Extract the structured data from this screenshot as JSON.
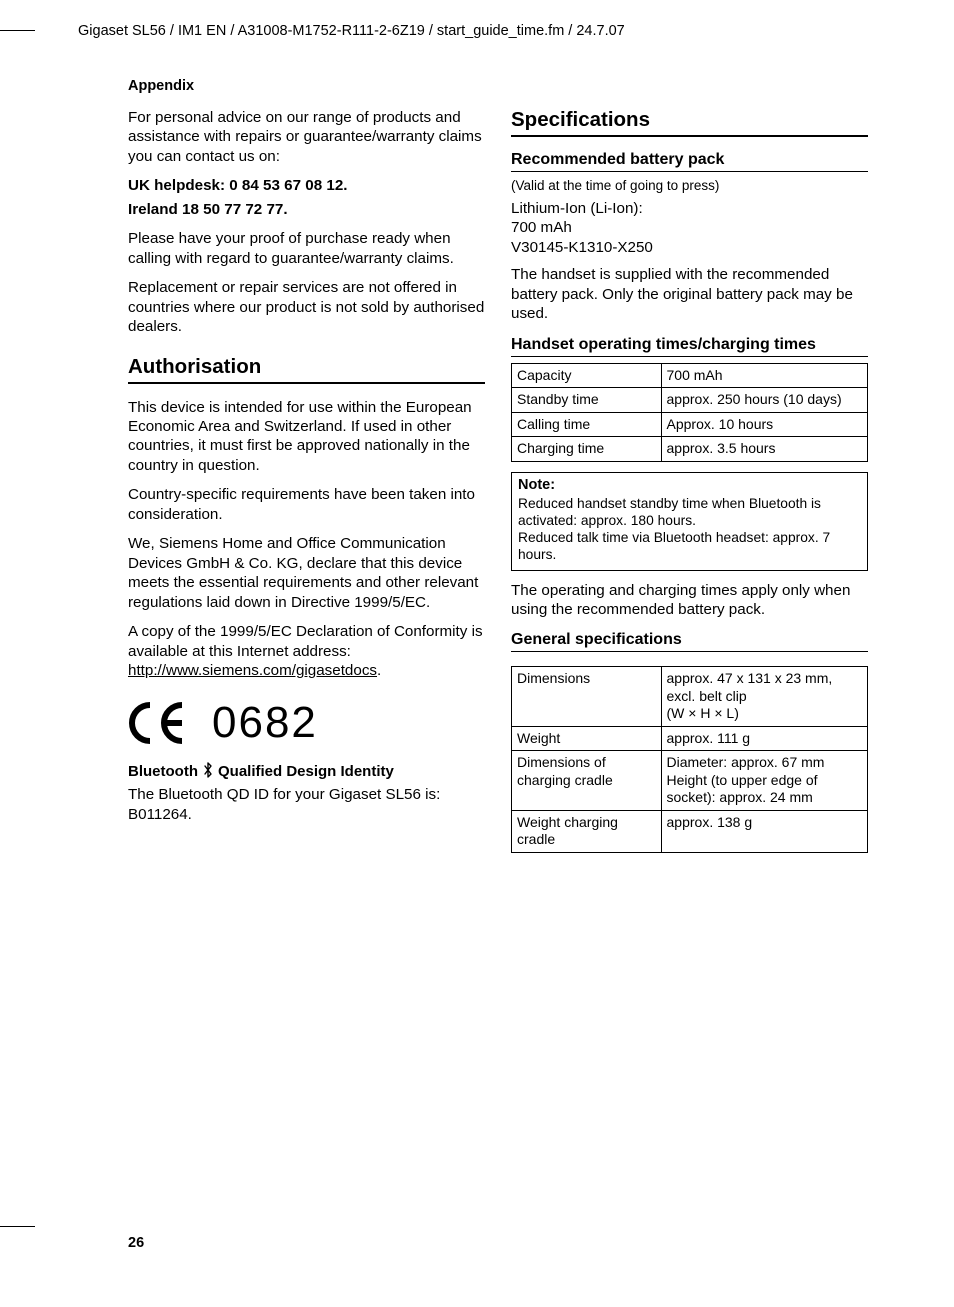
{
  "header": "Gigaset SL56 / IM1 EN / A31008-M1752-R111-2-6Z19 / start_guide_time.fm / 24.7.07",
  "sectionLabel": "Appendix",
  "pageNumber": "26",
  "left": {
    "intro": "For personal advice on our range of products and assistance with repairs or guarantee/warranty claims you can contact us on:",
    "ukLine": "UK helpdesk: 0 84 53 67 08 12.",
    "ieLine": "Ireland 18 50 77 72 77.",
    "proof": "Please have your proof of purchase ready when calling with regard to guarantee/warranty claims.",
    "replace": "Replacement or repair services are not offered in countries where our product is not sold by authorised dealers.",
    "authHeading": "Authorisation",
    "auth1": "This device is intended for use within the European Economic Area and Switzerland. If used in other countries, it must first be approved nationally in the country in question.",
    "auth2": "Country-specific requirements have been taken into consideration.",
    "auth3": "We, Siemens Home and Office Communication Devices GmbH & Co. KG, declare that this device meets the essential requirements and other relevant regulations laid down in Directive 1999/5/EC.",
    "auth4a": "A copy of the 1999/5/EC Declaration of Conformity is available at this Internet address:",
    "auth4link": "http://www.siemens.com/gigasetdocs",
    "ceNum": "0682",
    "btHeadingA": "Bluetooth",
    "btHeadingB": "Qualified Design Identity",
    "btText": "The Bluetooth QD ID for your Gigaset SL56 is: B011264."
  },
  "right": {
    "specHeading": "Specifications",
    "battHeading": "Recommended battery pack",
    "battValid": "(Valid at the time of going to press)",
    "battLines": "Lithium-Ion (Li-Ion):\n700 mAh\nV30145-K1310-X250",
    "battNote": "The handset is supplied with the recommended battery pack. Only the original battery pack may be used.",
    "opHeading": "Handset operating times/charging times",
    "opTable": [
      [
        "Capacity",
        "700 mAh"
      ],
      [
        "Standby time",
        "approx. 250 hours (10 days)"
      ],
      [
        "Calling time",
        "Approx. 10 hours"
      ],
      [
        "Charging time",
        "approx. 3.5 hours"
      ]
    ],
    "noteTitle": "Note:",
    "noteText1": "Reduced handset standby time when Bluetooth is activated: approx. 180 hours.",
    "noteText2": "Reduced talk time via Bluetooth headset: approx. 7 hours.",
    "opFoot": "The operating and charging times apply only when using the recommended battery pack.",
    "genHeading": "General specifications",
    "genTable": [
      [
        "Dimensions",
        "approx. 47 x 131 x 23 mm, excl. belt clip\n(W × H × L)"
      ],
      [
        "Weight",
        "approx. 111 g"
      ],
      [
        "Dimensions of charging cradle",
        "Diameter: approx. 67 mm Height (to upper edge of socket): approx. 24 mm"
      ],
      [
        "Weight charging cradle",
        "approx. 138 g"
      ]
    ]
  }
}
